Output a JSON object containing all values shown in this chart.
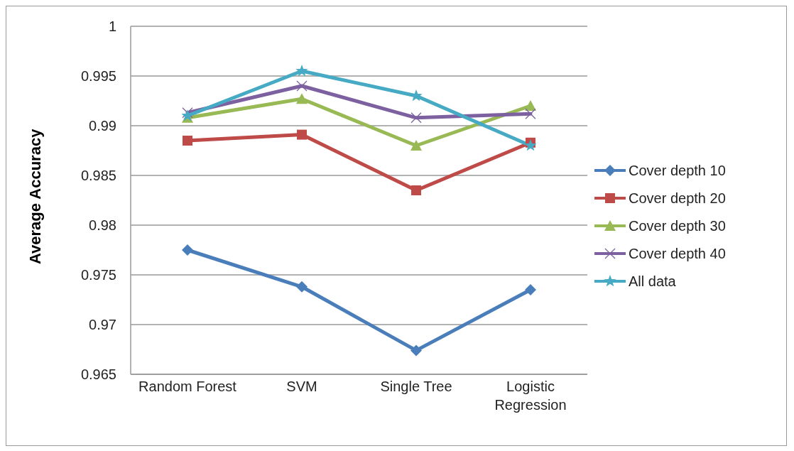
{
  "chart_data": {
    "type": "line",
    "ylabel": "Average Accuracy",
    "categories": [
      "Random Forest",
      "SVM",
      "Single Tree",
      "Logistic Regression"
    ],
    "series": [
      {
        "name": "Cover depth 10",
        "color": "#4a7ebb",
        "marker": "diamond",
        "values": [
          0.9775,
          0.9738,
          0.9674,
          0.9735
        ]
      },
      {
        "name": "Cover depth 20",
        "color": "#be4b48",
        "marker": "square",
        "values": [
          0.9885,
          0.9891,
          0.9835,
          0.9883
        ]
      },
      {
        "name": "Cover depth 30",
        "color": "#98b954",
        "marker": "triangle",
        "values": [
          0.9908,
          0.9927,
          0.988,
          0.992
        ]
      },
      {
        "name": "Cover depth 40",
        "color": "#7d60a0",
        "marker": "cross",
        "values": [
          0.9913,
          0.994,
          0.9908,
          0.9912
        ]
      },
      {
        "name": "All data",
        "color": "#46aac5",
        "marker": "star",
        "values": [
          0.991,
          0.9955,
          0.993,
          0.988
        ]
      }
    ],
    "ylim": [
      0.965,
      1
    ],
    "yticks": [
      0.965,
      0.97,
      0.975,
      0.98,
      0.985,
      0.99,
      0.995,
      1
    ],
    "grid": "y",
    "legend": "right",
    "line_style": "solid"
  }
}
